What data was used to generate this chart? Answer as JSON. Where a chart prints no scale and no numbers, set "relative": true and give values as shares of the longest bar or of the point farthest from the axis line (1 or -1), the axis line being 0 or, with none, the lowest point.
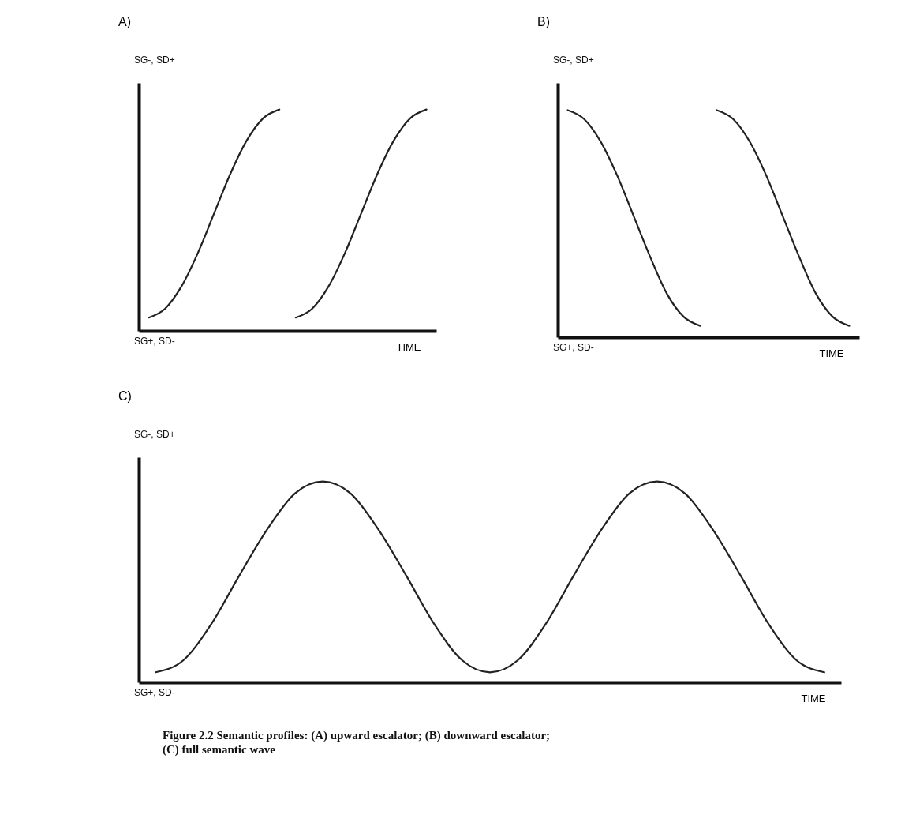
{
  "chart_data": [
    {
      "type": "line",
      "title": "A)",
      "xlabel": "TIME",
      "relative": true,
      "grid": false,
      "marker": "none",
      "line_style": "solid",
      "annotations": [
        "SG-, SD+",
        "SG+, SD-"
      ],
      "categories": [
        null,
        null,
        null,
        null,
        null,
        null,
        null,
        null,
        null,
        null,
        null,
        null,
        null,
        null,
        null,
        null,
        null,
        null
      ],
      "series": [
        {
          "color": "#222222",
          "values": [
            0.06,
            0.1,
            0.2,
            0.35,
            0.53,
            0.71,
            0.86,
            0.96,
            1.0,
            null,
            null,
            null,
            null,
            null,
            null,
            null,
            null,
            null
          ]
        },
        {
          "color": "#222222",
          "values": [
            null,
            null,
            null,
            null,
            null,
            null,
            null,
            null,
            null,
            0.06,
            0.1,
            0.2,
            0.35,
            0.53,
            0.71,
            0.86,
            0.96,
            1.0
          ]
        }
      ]
    },
    {
      "type": "line",
      "title": "B)",
      "xlabel": "TIME",
      "relative": true,
      "grid": false,
      "marker": "none",
      "line_style": "solid",
      "annotations": [
        "SG-, SD+",
        "SG+, SD-"
      ],
      "categories": [
        null,
        null,
        null,
        null,
        null,
        null,
        null,
        null,
        null,
        null,
        null,
        null,
        null,
        null,
        null,
        null,
        null,
        null
      ],
      "series": [
        {
          "color": "#222222",
          "values": [
            1.0,
            0.96,
            0.86,
            0.71,
            0.53,
            0.35,
            0.19,
            0.09,
            0.05,
            null,
            null,
            null,
            null,
            null,
            null,
            null,
            null,
            null
          ]
        },
        {
          "color": "#222222",
          "values": [
            null,
            null,
            null,
            null,
            null,
            null,
            null,
            null,
            null,
            1.0,
            0.96,
            0.86,
            0.71,
            0.53,
            0.35,
            0.19,
            0.09,
            0.05
          ]
        }
      ]
    },
    {
      "type": "line",
      "title": "C)",
      "xlabel": "TIME",
      "relative": true,
      "grid": false,
      "marker": "none",
      "line_style": "solid",
      "annotations": [
        "SG-, SD+",
        "SG+, SD-",
        "Figure 2.2   Semantic profiles: (A) upward escalator; (B) downward escalator;\n(C) full semantic wave"
      ],
      "categories": [
        null,
        null,
        null,
        null,
        null,
        null,
        null,
        null,
        null,
        null,
        null,
        null,
        null,
        null,
        null,
        null,
        null,
        null,
        null,
        null,
        null,
        null,
        null,
        null,
        null
      ],
      "series": [
        {
          "color": "#222222",
          "values": [
            0.05,
            0.11,
            0.29,
            0.53,
            0.76,
            0.94,
            1.0,
            0.94,
            0.76,
            0.53,
            0.29,
            0.11,
            0.05,
            0.11,
            0.29,
            0.53,
            0.76,
            0.94,
            1.0,
            0.94,
            0.76,
            0.53,
            0.29,
            0.11,
            0.05
          ]
        }
      ]
    }
  ]
}
